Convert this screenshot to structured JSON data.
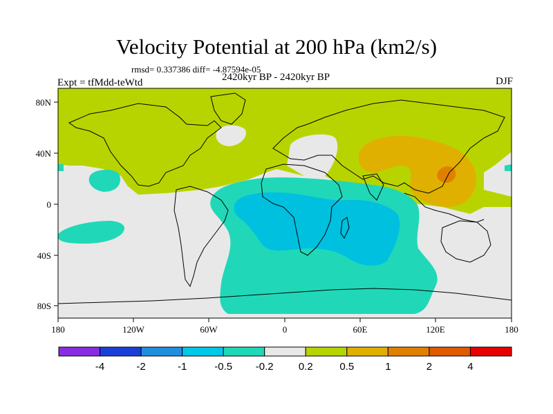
{
  "title": "Velocity Potential at 200 hPa (km2/s)",
  "stats": "rmsd= 0.337386 diff= -4.87594e-05",
  "expt": "Expt = tfMdd-teWtd",
  "period": "2420kyr BP - 2420kyr BP",
  "season": "DJF",
  "colors": {
    "ocean_land_neutral": "#e8e8e8",
    "pos_0_2": "#b8d400",
    "pos_0_5": "#e0b000",
    "pos_1": "#e08000",
    "neg_0_2": "#20d8b8",
    "neg_0_5": "#00c0e0"
  },
  "chart_data": {
    "type": "heatmap",
    "x_ticks": [
      "180",
      "120W",
      "60W",
      "0",
      "60E",
      "120E",
      "180"
    ],
    "y_ticks": [
      "80N",
      "40N",
      "0",
      "40S",
      "80S"
    ],
    "colorbar": {
      "labels": [
        "-4",
        "-2",
        "-1",
        "-0.5",
        "-0.2",
        "0.2",
        "0.5",
        "1",
        "2",
        "4"
      ],
      "colors": [
        "#8a2be2",
        "#1a3fd8",
        "#1e8fe0",
        "#00c8e8",
        "#20d8b8",
        "#e8e8e8",
        "#b8d400",
        "#e0b000",
        "#e08000",
        "#e05a00",
        "#e80000"
      ]
    }
  }
}
